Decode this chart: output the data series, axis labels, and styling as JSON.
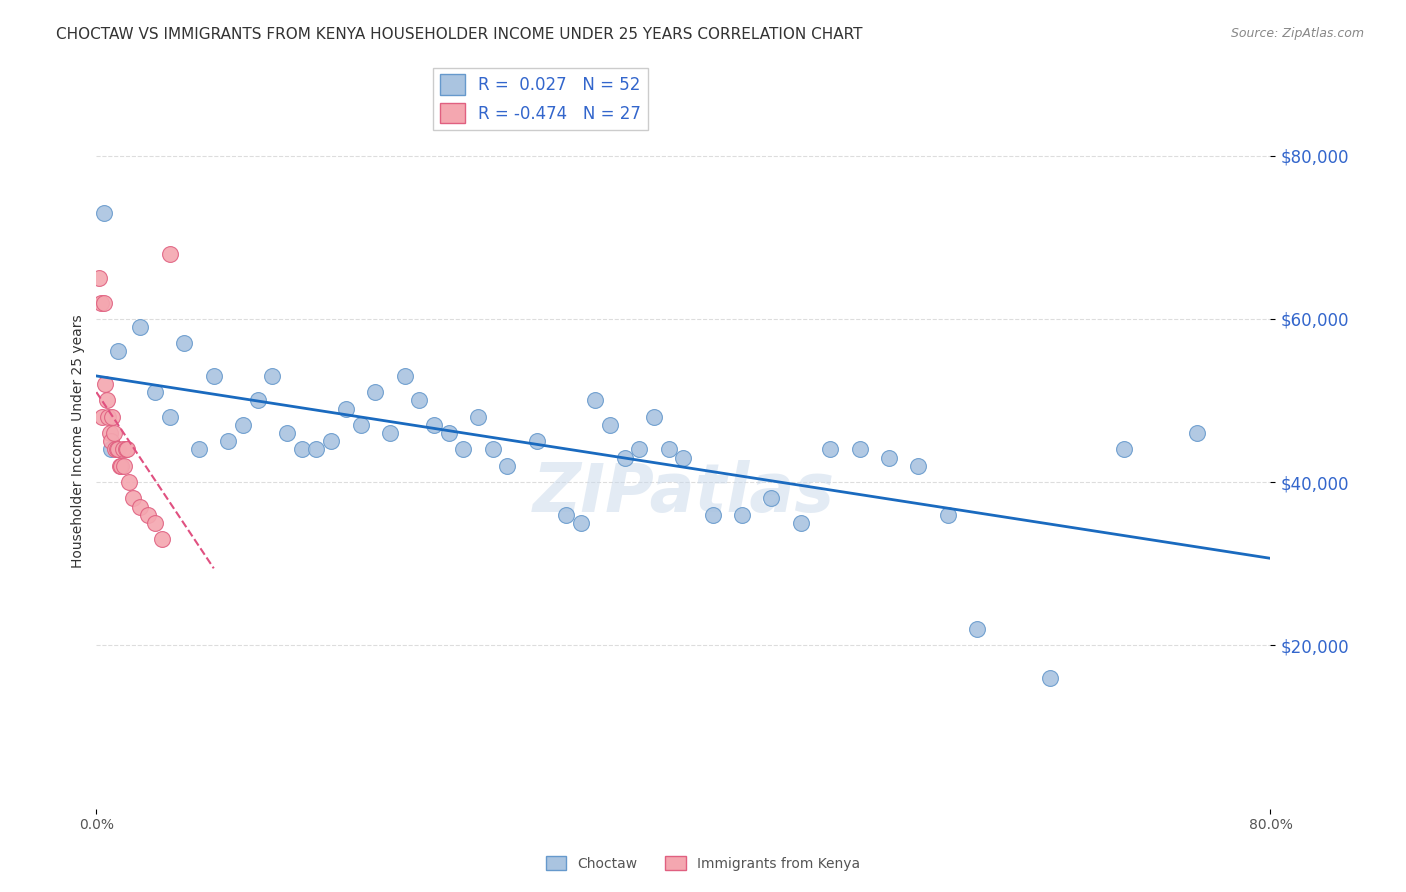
{
  "title": "CHOCTAW VS IMMIGRANTS FROM KENYA HOUSEHOLDER INCOME UNDER 25 YEARS CORRELATION CHART",
  "source": "Source: ZipAtlas.com",
  "ylabel": "Householder Income Under 25 years",
  "ytick_labels": [
    "$20,000",
    "$40,000",
    "$60,000",
    "$80,000"
  ],
  "ytick_values": [
    20000,
    40000,
    60000,
    80000
  ],
  "watermark": "ZIPatlas",
  "legend_r1": "R =  0.027   N = 52",
  "legend_r2": "R = -0.474   N = 27",
  "choctaw_x": [
    0.5,
    1.5,
    1.0,
    3.0,
    4.0,
    5.0,
    6.0,
    7.0,
    8.0,
    9.0,
    10.0,
    11.0,
    12.0,
    13.0,
    14.0,
    15.0,
    16.0,
    17.0,
    18.0,
    19.0,
    20.0,
    21.0,
    22.0,
    23.0,
    24.0,
    25.0,
    26.0,
    27.0,
    28.0,
    30.0,
    32.0,
    33.0,
    34.0,
    35.0,
    36.0,
    37.0,
    38.0,
    39.0,
    40.0,
    42.0,
    44.0,
    46.0,
    48.0,
    50.0,
    52.0,
    54.0,
    56.0,
    58.0,
    60.0,
    65.0,
    70.0,
    75.0
  ],
  "choctaw_y": [
    73000,
    56000,
    44000,
    59000,
    51000,
    48000,
    57000,
    44000,
    53000,
    45000,
    47000,
    50000,
    53000,
    46000,
    44000,
    44000,
    45000,
    49000,
    47000,
    51000,
    46000,
    53000,
    50000,
    47000,
    46000,
    44000,
    48000,
    44000,
    42000,
    45000,
    36000,
    35000,
    50000,
    47000,
    43000,
    44000,
    48000,
    44000,
    43000,
    36000,
    36000,
    38000,
    35000,
    44000,
    44000,
    43000,
    42000,
    36000,
    22000,
    16000,
    44000,
    46000
  ],
  "kenya_x": [
    0.2,
    0.3,
    0.4,
    0.5,
    0.6,
    0.7,
    0.8,
    0.9,
    1.0,
    1.1,
    1.2,
    1.3,
    1.4,
    1.5,
    1.6,
    1.7,
    1.8,
    1.9,
    2.0,
    2.1,
    2.2,
    2.5,
    3.0,
    3.5,
    4.0,
    4.5,
    5.0
  ],
  "kenya_y": [
    65000,
    62000,
    48000,
    62000,
    52000,
    50000,
    48000,
    46000,
    45000,
    48000,
    46000,
    44000,
    44000,
    44000,
    42000,
    42000,
    44000,
    42000,
    44000,
    44000,
    40000,
    38000,
    37000,
    36000,
    35000,
    33000,
    68000
  ],
  "xlim": [
    0,
    80
  ],
  "ylim": [
    0,
    90000
  ],
  "bg_color": "#ffffff",
  "grid_color": "#dddddd",
  "choctaw_dot_color": "#aac4e0",
  "choctaw_edge_color": "#6699cc",
  "kenya_dot_color": "#f4a7b0",
  "kenya_edge_color": "#e06080",
  "trend_choctaw_color": "#1a6abf",
  "trend_kenya_color": "#e05080",
  "title_fontsize": 11,
  "source_fontsize": 9,
  "ylabel_fontsize": 10,
  "tick_fontsize": 10,
  "legend_fontsize": 12,
  "watermark_fontsize": 48,
  "watermark_color": "#c8d8ea",
  "watermark_alpha": 0.5,
  "xtick_positions": [
    0,
    80
  ],
  "xtick_labels": [
    "0.0%",
    "80.0%"
  ],
  "ytick_right_color": "#3366cc"
}
